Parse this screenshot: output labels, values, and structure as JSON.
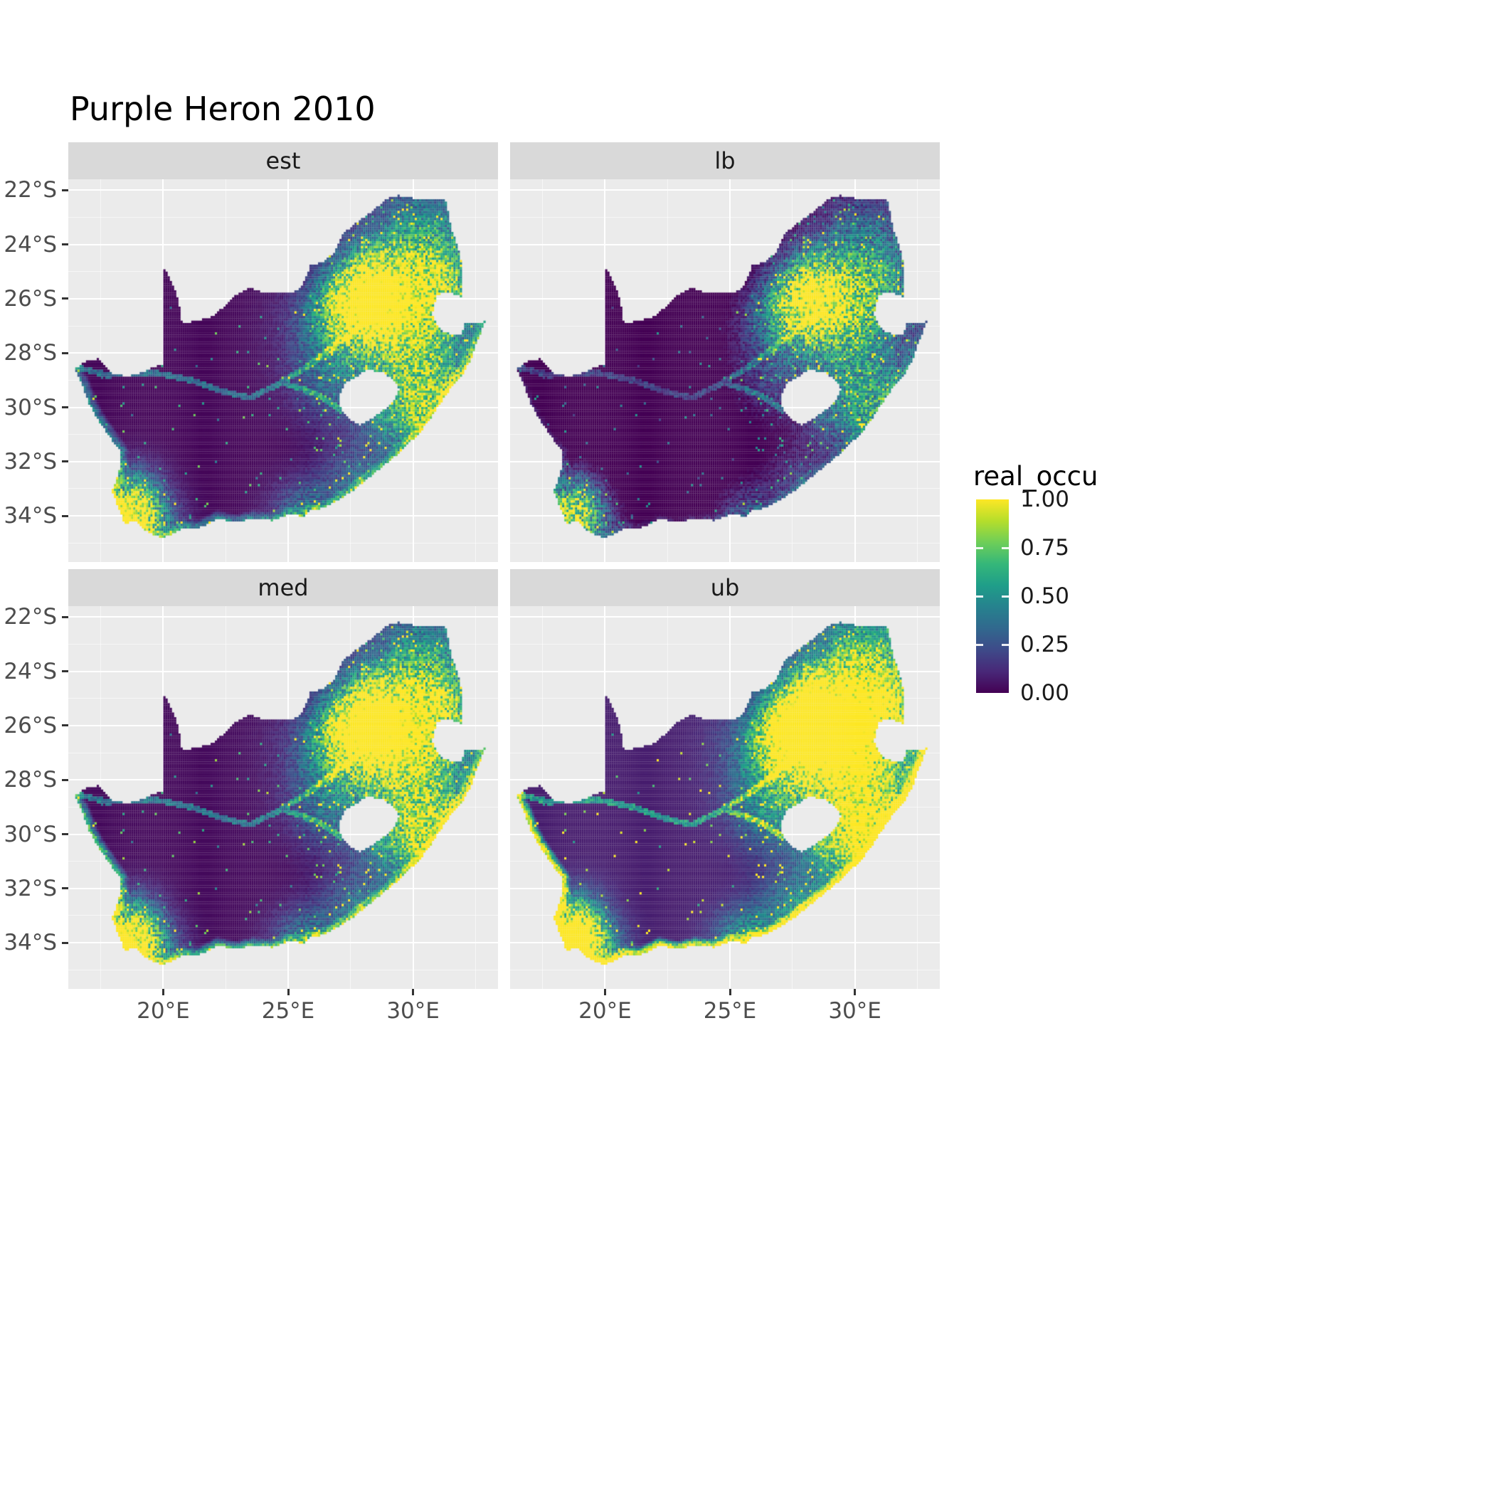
{
  "title": "Purple Heron 2010",
  "colors": {
    "panel_bg": "#EBEBEB",
    "strip_bg": "#D9D9D9",
    "grid_major": "#FFFFFF",
    "grid_minor": "rgba(255,255,255,0.55)",
    "axis_text": "#4D4D4D",
    "strip_text": "#1A1A1A",
    "tick_mark": "#333333",
    "title_text": "#000000",
    "viridis": [
      "#440154",
      "#482878",
      "#3E4A89",
      "#31688E",
      "#26828E",
      "#1F9E89",
      "#35B779",
      "#6ECE58",
      "#B5DE2B",
      "#FDE725"
    ]
  },
  "chart_data": {
    "type": "heatmap",
    "subtype": "faceted raster occupancy map",
    "title": "Purple Heron 2010",
    "facets": [
      "est",
      "lb",
      "med",
      "ub"
    ],
    "legend_title": "real_occu",
    "description": "Modelled occupancy (real_occu, 0 to 1, viridis palette) of the Purple Heron across South Africa in 2010 on a fine raster grid. Four facets show the estimate (est), lower bound (lb), median (med) and upper bound (ub). Occupancy is high around the Gauteng/Highveld region near 28E 26S, along the KwaZulu-Natal coast and in the southwestern Cape near Cape Town; the arid western interior is near zero. The lb panel is darkest, the ub panel is brightest with high values along the entire coastline. Lesotho and Eswatini appear as holes in the raster.",
    "color_scale": {
      "palette": "viridis",
      "min": 0.0,
      "max": 1.0,
      "tick_values": [
        1.0,
        0.75,
        0.5,
        0.25,
        0.0
      ],
      "tick_labels": [
        "1.00",
        "0.75",
        "0.50",
        "0.25",
        "0.00"
      ]
    },
    "x_axis": {
      "tick_labels": [
        "20°E",
        "25°E",
        "30°E"
      ],
      "tick_lons": [
        20,
        25,
        30
      ],
      "minor_lons": [
        17.5,
        22.5,
        27.5,
        32.5
      ]
    },
    "y_axis": {
      "tick_labels": [
        "22°S",
        "24°S",
        "26°S",
        "28°S",
        "30°S",
        "32°S",
        "34°S"
      ],
      "tick_lats": [
        -22,
        -24,
        -26,
        -28,
        -30,
        -32,
        -34
      ],
      "minor_lats": [
        -23,
        -25,
        -27,
        -29,
        -31,
        -33,
        -35
      ]
    },
    "lon_range": [
      16.2,
      33.4
    ],
    "lat_range": [
      -35.7,
      -21.6
    ],
    "region": "South Africa (Lesotho shown as hole)",
    "generator": {
      "cell_size_deg": 0.086,
      "hotspots": [
        [
          28.05,
          -26.2,
          0.9,
          1.15
        ],
        [
          29.55,
          -26.35,
          1.2,
          0.7
        ],
        [
          28.4,
          -24.9,
          0.9,
          0.45
        ],
        [
          30.3,
          -23.7,
          1.1,
          0.4
        ],
        [
          31.0,
          -25.2,
          0.85,
          0.45
        ],
        [
          30.85,
          -29.7,
          1.1,
          0.5
        ],
        [
          29.55,
          -30.3,
          0.9,
          0.35
        ],
        [
          29.9,
          -27.8,
          1.4,
          0.4
        ],
        [
          26.9,
          -26.9,
          1.2,
          0.4
        ],
        [
          18.65,
          -33.9,
          0.7,
          1.0
        ],
        [
          19.35,
          -34.35,
          0.8,
          0.5
        ],
        [
          18.85,
          -32.9,
          0.7,
          0.35
        ],
        [
          25.6,
          -33.8,
          0.8,
          0.35
        ],
        [
          27.9,
          -32.9,
          0.9,
          0.3
        ],
        [
          26.5,
          -29.1,
          1.0,
          0.25
        ]
      ],
      "rivers": [
        [
          [
            16.6,
            -28.55
          ],
          [
            17.8,
            -28.82
          ],
          [
            19.0,
            -28.72
          ],
          [
            20.0,
            -28.78
          ],
          [
            21.2,
            -29.02
          ],
          [
            22.3,
            -29.4
          ],
          [
            23.5,
            -29.66
          ],
          [
            24.7,
            -29.1
          ],
          [
            25.7,
            -29.35
          ],
          [
            26.6,
            -29.75
          ],
          [
            27.1,
            -30.1
          ]
        ],
        [
          [
            24.7,
            -29.1
          ],
          [
            25.7,
            -28.55
          ],
          [
            26.7,
            -27.85
          ],
          [
            27.5,
            -27.25
          ],
          [
            28.15,
            -26.85
          ]
        ]
      ],
      "facet_params": {
        "est": {
          "gain": 1.0,
          "offset": 0.0,
          "coast": 0.55,
          "rim": 0,
          "rim_val": 0
        },
        "lb": {
          "gain": 0.8,
          "offset": -0.1,
          "coast": 0.25,
          "rim": 0,
          "rim_val": 0
        },
        "med": {
          "gain": 1.07,
          "offset": 0.01,
          "coast": 0.7,
          "rim": 0.09,
          "rim_val": 0.55
        },
        "ub": {
          "gain": 1.35,
          "offset": 0.06,
          "coast": 1.0,
          "rim": 0.13,
          "rim_val": 0.8
        }
      }
    },
    "geometry": {
      "coast_start_index": 48,
      "outline": [
        [
          16.45,
          -28.58
        ],
        [
          17.05,
          -28.25
        ],
        [
          17.4,
          -28.22
        ],
        [
          17.95,
          -28.77
        ],
        [
          18.6,
          -28.86
        ],
        [
          19.25,
          -28.7
        ],
        [
          19.65,
          -28.5
        ],
        [
          19.98,
          -28.42
        ],
        [
          19.98,
          -24.77
        ],
        [
          20.3,
          -25.3
        ],
        [
          20.55,
          -25.9
        ],
        [
          20.68,
          -26.45
        ],
        [
          20.74,
          -26.88
        ],
        [
          21.3,
          -26.84
        ],
        [
          21.95,
          -26.66
        ],
        [
          22.55,
          -26.22
        ],
        [
          22.9,
          -25.86
        ],
        [
          23.45,
          -25.6
        ],
        [
          24.0,
          -25.76
        ],
        [
          24.75,
          -25.82
        ],
        [
          25.35,
          -25.72
        ],
        [
          25.6,
          -25.48
        ],
        [
          25.9,
          -24.76
        ],
        [
          26.45,
          -24.64
        ],
        [
          26.85,
          -24.28
        ],
        [
          27.15,
          -23.66
        ],
        [
          27.7,
          -23.22
        ],
        [
          28.2,
          -22.9
        ],
        [
          28.95,
          -22.32
        ],
        [
          29.45,
          -22.2
        ],
        [
          30.0,
          -22.3
        ],
        [
          30.65,
          -22.32
        ],
        [
          31.3,
          -22.36
        ],
        [
          31.56,
          -23.5
        ],
        [
          31.76,
          -24.0
        ],
        [
          31.96,
          -24.7
        ],
        [
          31.99,
          -25.5
        ],
        [
          31.97,
          -25.96
        ],
        [
          31.45,
          -25.73
        ],
        [
          30.97,
          -25.86
        ],
        [
          30.82,
          -26.25
        ],
        [
          30.79,
          -26.6
        ],
        [
          30.95,
          -26.95
        ],
        [
          31.16,
          -27.2
        ],
        [
          31.6,
          -27.32
        ],
        [
          31.97,
          -27.3
        ],
        [
          32.1,
          -26.86
        ],
        [
          32.55,
          -26.86
        ],
        [
          32.89,
          -26.85
        ],
        [
          32.58,
          -27.53
        ],
        [
          32.35,
          -28.2
        ],
        [
          32.0,
          -28.75
        ],
        [
          31.55,
          -29.25
        ],
        [
          31.05,
          -29.9
        ],
        [
          30.65,
          -30.5
        ],
        [
          30.25,
          -30.95
        ],
        [
          29.6,
          -31.55
        ],
        [
          28.9,
          -32.1
        ],
        [
          28.2,
          -32.62
        ],
        [
          27.55,
          -33.1
        ],
        [
          27.0,
          -33.42
        ],
        [
          26.4,
          -33.72
        ],
        [
          25.9,
          -33.8
        ],
        [
          25.63,
          -34.0
        ],
        [
          25.0,
          -33.97
        ],
        [
          24.4,
          -34.17
        ],
        [
          23.6,
          -34.1
        ],
        [
          22.9,
          -34.25
        ],
        [
          22.2,
          -34.1
        ],
        [
          21.5,
          -34.42
        ],
        [
          20.8,
          -34.46
        ],
        [
          20.0,
          -34.82
        ],
        [
          19.4,
          -34.62
        ],
        [
          19.15,
          -34.4
        ],
        [
          18.82,
          -34.16
        ],
        [
          18.46,
          -34.32
        ],
        [
          18.34,
          -33.98
        ],
        [
          18.2,
          -33.68
        ],
        [
          17.96,
          -33.1
        ],
        [
          18.12,
          -32.68
        ],
        [
          18.3,
          -32.1
        ],
        [
          18.26,
          -31.6
        ],
        [
          17.8,
          -31.0
        ],
        [
          17.32,
          -30.35
        ],
        [
          17.05,
          -29.9
        ],
        [
          16.76,
          -29.2
        ],
        [
          16.45,
          -28.58
        ]
      ],
      "lesotho_hole": [
        [
          27.05,
          -29.62
        ],
        [
          27.3,
          -29.1
        ],
        [
          27.75,
          -28.85
        ],
        [
          28.2,
          -28.62
        ],
        [
          28.75,
          -28.7
        ],
        [
          29.15,
          -28.95
        ],
        [
          29.45,
          -29.3
        ],
        [
          29.28,
          -29.75
        ],
        [
          28.85,
          -30.1
        ],
        [
          28.3,
          -30.45
        ],
        [
          27.85,
          -30.65
        ],
        [
          27.5,
          -30.45
        ],
        [
          27.2,
          -30.15
        ],
        [
          27.02,
          -29.9
        ]
      ]
    }
  }
}
